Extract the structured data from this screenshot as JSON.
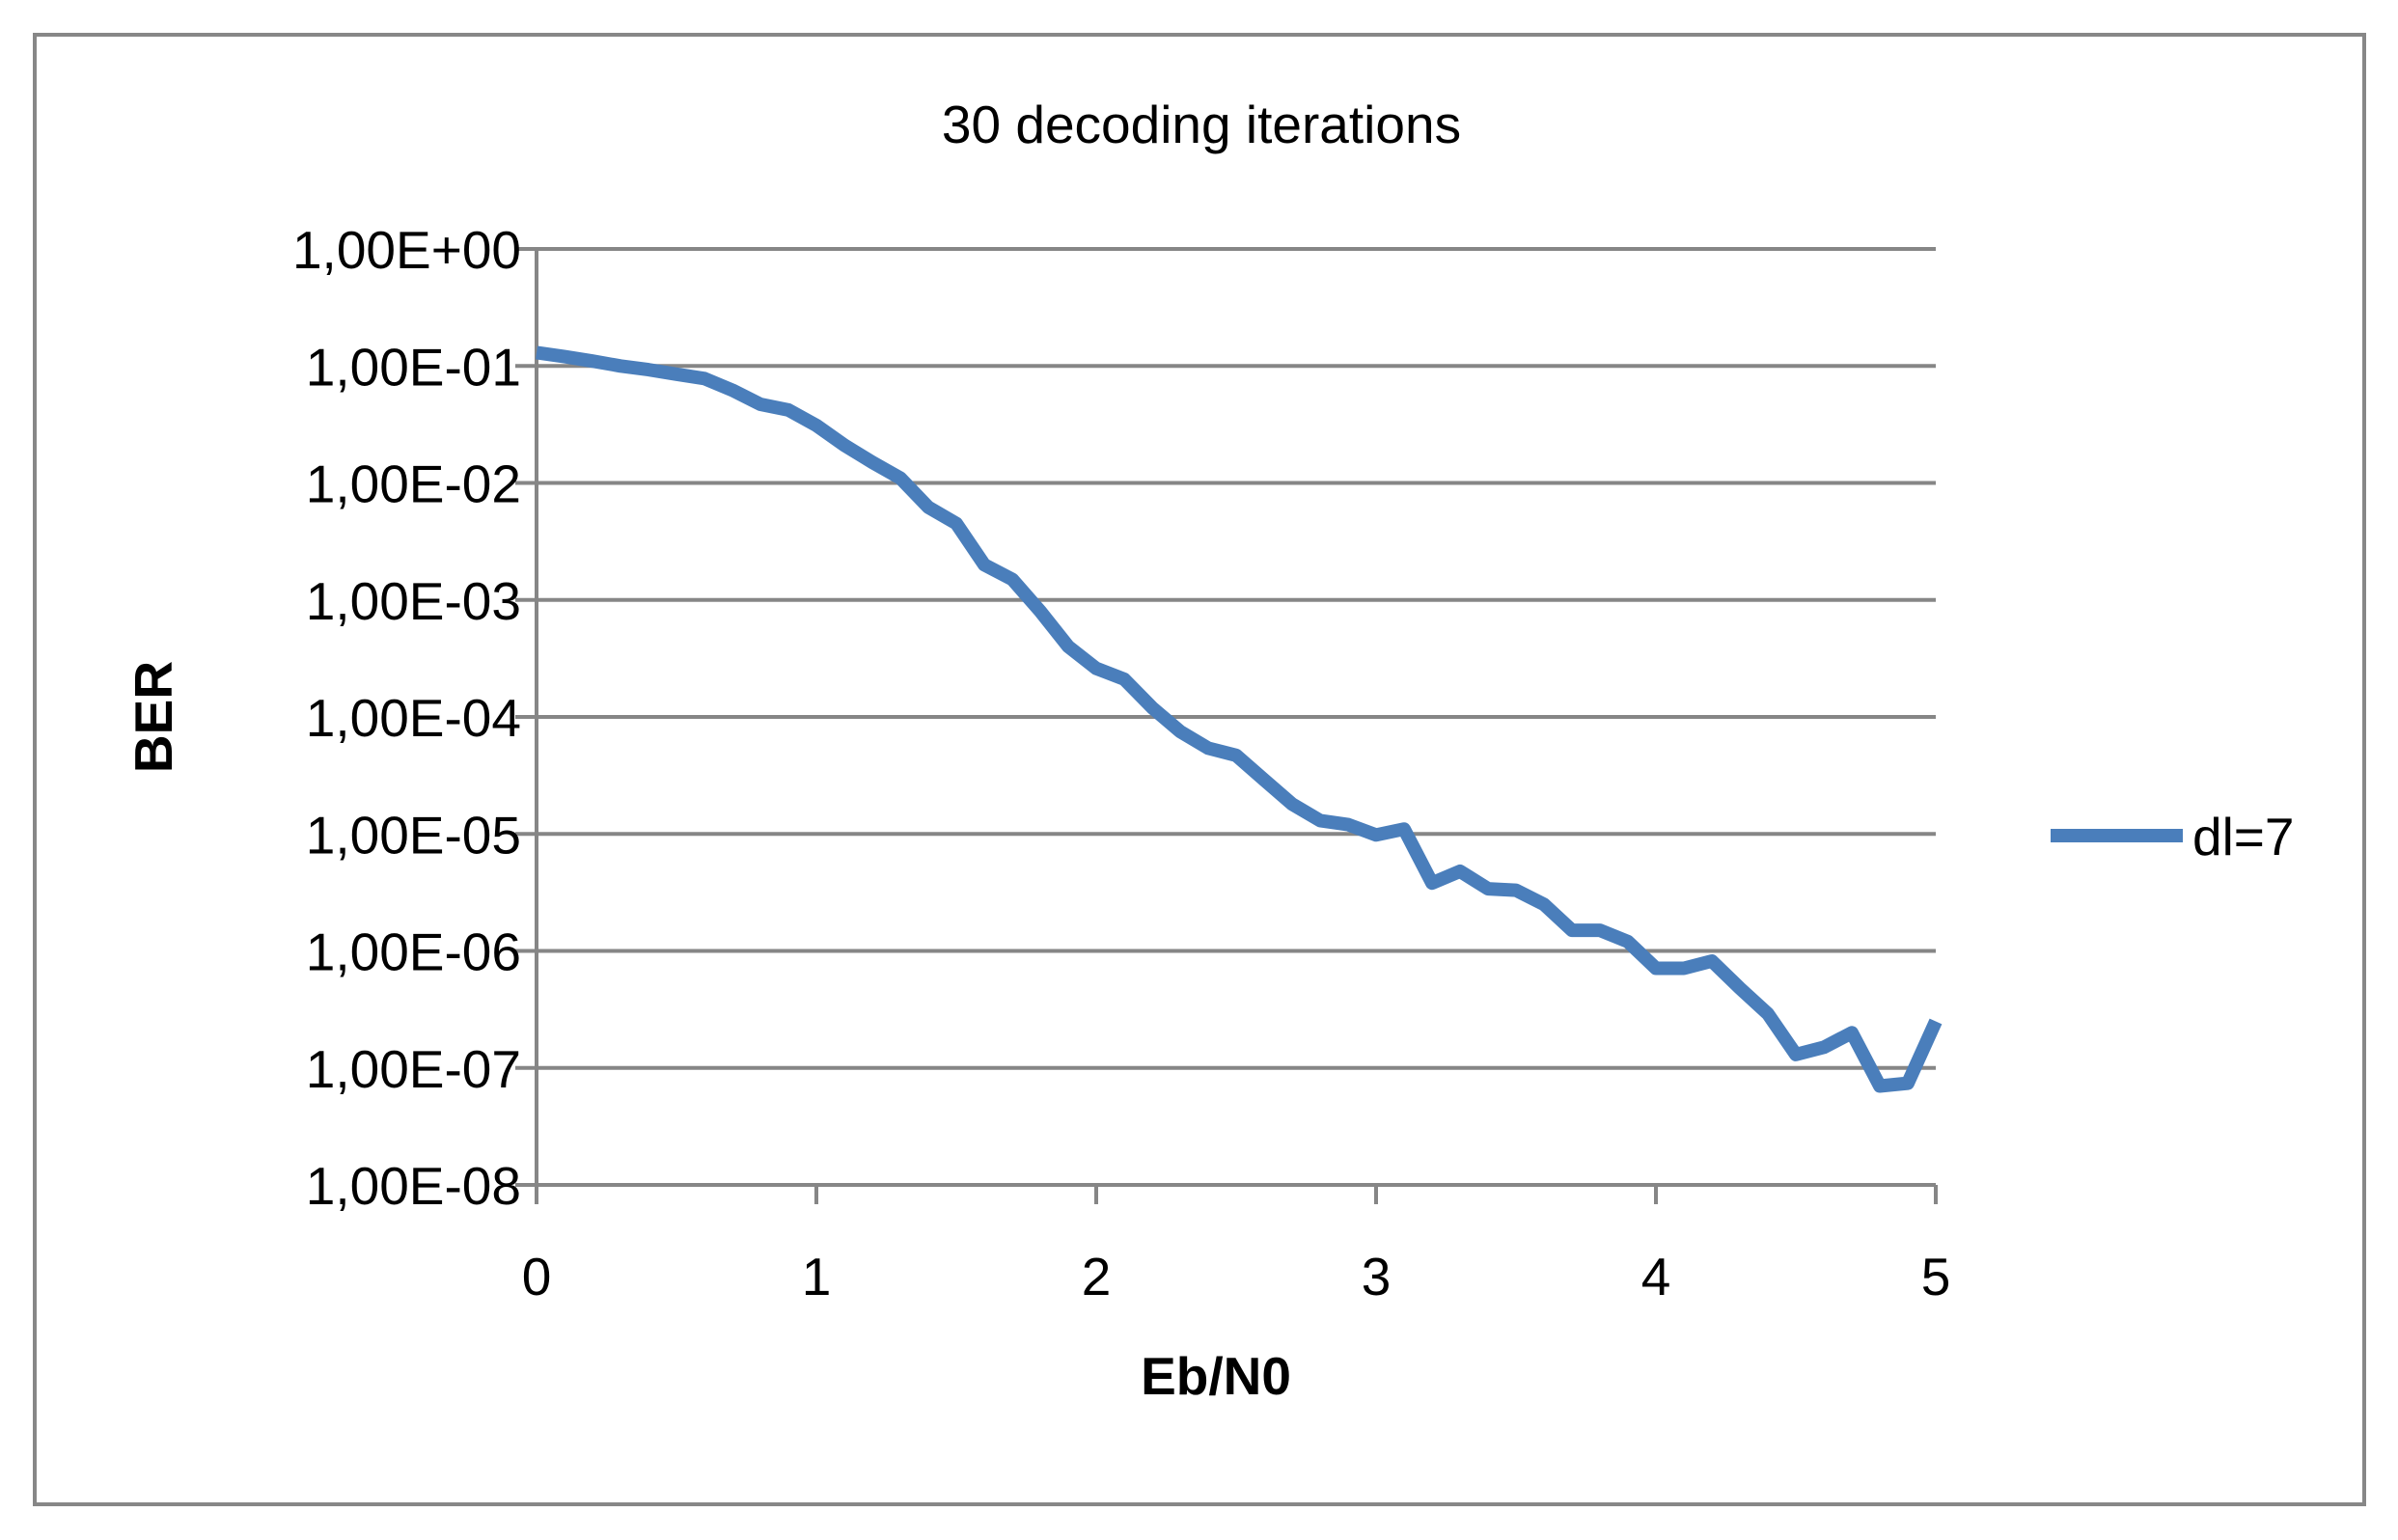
{
  "chart_data": {
    "type": "line",
    "title": "30 decoding iterations",
    "xlabel": "Eb/N0",
    "ylabel": "BER",
    "xlim": [
      0,
      5
    ],
    "ylim": [
      1e-08,
      1
    ],
    "y_scale": "log",
    "x_ticks": [
      "0",
      "1",
      "2",
      "3",
      "4",
      "5"
    ],
    "y_ticks": [
      "1,00E+00",
      "1,00E-01",
      "1,00E-02",
      "1,00E-03",
      "1,00E-04",
      "1,00E-05",
      "1,00E-06",
      "1,00E-07",
      "1,00E-08"
    ],
    "grid": "horizontal",
    "legend_position": "right",
    "series": [
      {
        "name": "dl=7",
        "color": "#4a7ebb",
        "x": [
          0,
          0.1,
          0.2,
          0.3,
          0.4,
          0.5,
          0.6,
          0.7,
          0.8,
          0.9,
          1.0,
          1.1,
          1.2,
          1.3,
          1.4,
          1.5,
          1.6,
          1.7,
          1.8,
          1.9,
          2.0,
          2.1,
          2.2,
          2.3,
          2.4,
          2.5,
          2.6,
          2.7,
          2.8,
          2.9,
          3.0,
          3.1,
          3.2,
          3.3,
          3.4,
          3.5,
          3.6,
          3.7,
          3.8,
          3.9,
          4.0,
          4.1,
          4.2,
          4.3,
          4.4,
          4.5,
          4.6,
          4.7,
          4.8,
          4.9,
          5.0
        ],
        "y": [
          0.13,
          0.12,
          0.11,
          0.1,
          0.093,
          0.085,
          0.078,
          0.062,
          0.047,
          0.042,
          0.031,
          0.021,
          0.015,
          0.011,
          0.0062,
          0.0045,
          0.002,
          0.0015,
          0.0008,
          0.0004,
          0.00026,
          0.00021,
          0.00012,
          7.5e-05,
          5.4e-05,
          4.7e-05,
          2.9e-05,
          1.8e-05,
          1.3e-05,
          1.2e-05,
          9.8e-06,
          1.1e-05,
          3.8e-06,
          4.8e-06,
          3.4e-06,
          3.3e-06,
          2.5e-06,
          1.5e-06,
          1.5e-06,
          1.2e-06,
          7.1e-07,
          7.1e-07,
          8.2e-07,
          4.8e-07,
          2.9e-07,
          1.3e-07,
          1.5e-07,
          2e-07,
          7e-08,
          7.4e-08,
          2.5e-07
        ]
      }
    ]
  }
}
